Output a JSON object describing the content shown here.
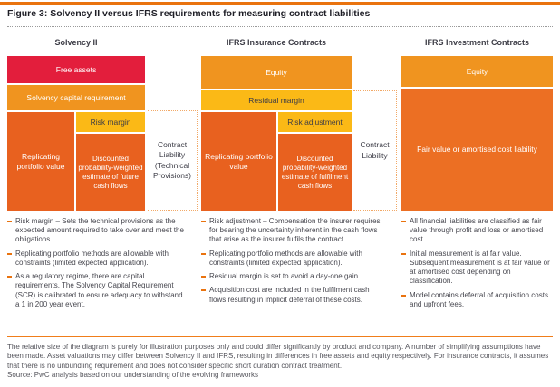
{
  "page": {
    "title": "Figure 3: Solvency II versus IFRS requirements for measuring contract liabilities",
    "footnote": "The relative size of the diagram is purely for illustration purposes only and could differ significantly by product and company. A number of simplifying assumptions have been made. Asset valuations may differ between Solvency II and IFRS, resulting in differences in free assets and equity respectively. For insurance contracts, it assumes that there is no unbundling requirement and does not consider specific short duration contract treatment.",
    "source": "Source: PwC analysis based on our understanding of the evolving frameworks"
  },
  "palette": {
    "accent_orange": "#E9730F",
    "red": "#E31E3C",
    "orange": "#F0941F",
    "gold": "#FBB916",
    "dark_orange": "#E8611F",
    "deep_orange": "#EC6F23",
    "dotted_bracket": "#F2A967",
    "text_dark": "#3C3C46"
  },
  "columns": [
    {
      "header": "Solvency II",
      "boxes": {
        "top": "Free assets",
        "second": "Solvency capital requirement",
        "left": "Replicating portfolio value",
        "right_top": "Risk margin",
        "right_bottom": "Discounted probability-weighted estimate of future cash flows"
      },
      "bracket_label": "Contract Liability (Technical Provisions)",
      "bullets": [
        "Risk margin – Sets the technical provisions as the expected amount required to take over and meet the obligations.",
        "Replicating portfolio methods are allowable with constraints (limited expected application).",
        "As a regulatory regime, there are capital requirements. The Solvency Capital Requirement (SCR) is calibrated to ensure adequacy to withstand a 1 in 200 year event."
      ]
    },
    {
      "header": "IFRS Insurance Contracts",
      "boxes": {
        "top": "Equity",
        "second": "Residual margin",
        "left": "Replicating portfolio value",
        "right_top": "Risk adjustment",
        "right_bottom": "Discounted probability-weighted estimate of fulfilment cash flows"
      },
      "bracket_label": "Contract Liability",
      "bullets": [
        "Risk adjustment – Compensation the insurer requires for bearing the uncertainty inherent in the cash flows that arise as the insurer fulfils the contract.",
        "Replicating portfolio methods are allowable with constraints (limited expected application).",
        "Residual margin is set to avoid a day-one gain.",
        "Acquisition cost are included in the fulfilment cash flows resulting in implicit deferral of these costs."
      ]
    },
    {
      "header": "IFRS Investment Contracts",
      "boxes": {
        "top": "Equity",
        "main": "Fair value or amortised cost liability"
      },
      "bullets": [
        "All financial liabilities are classified as fair value through profit and loss or amortised cost.",
        "Initial measurement is at fair value. Subsequent measurement is at fair value or at amortised cost depending on classification.",
        "Model contains deferral of acquisition costs and upfront fees."
      ]
    }
  ]
}
